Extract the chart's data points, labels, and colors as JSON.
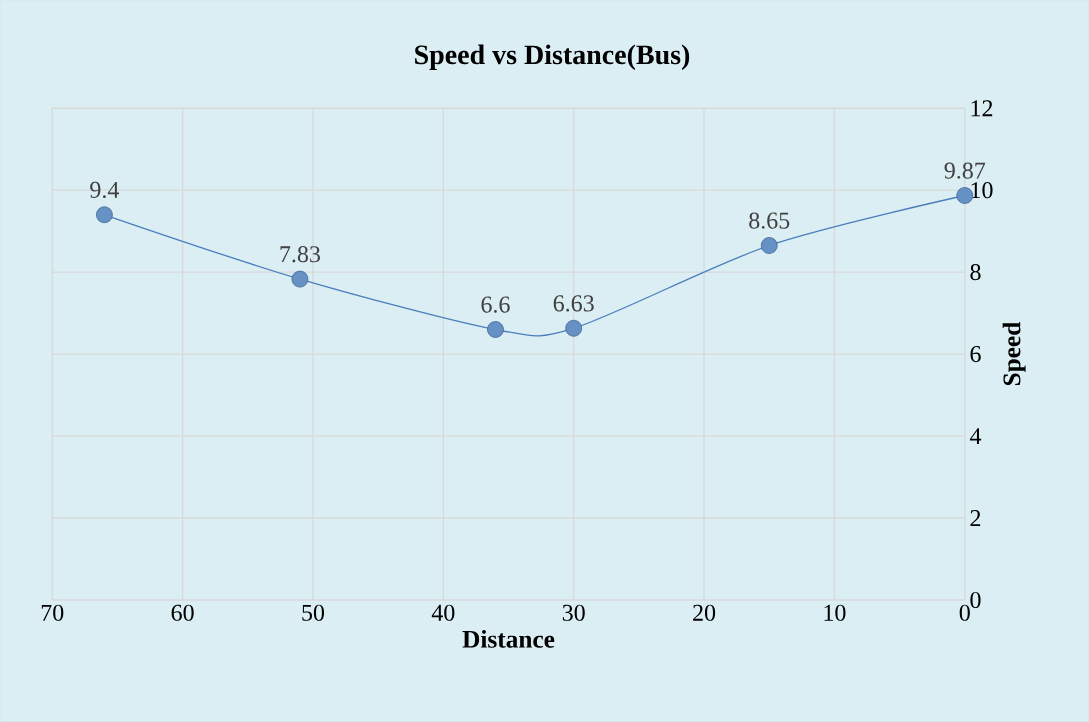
{
  "chart_data": {
    "type": "line",
    "title": "Speed vs Distance(Bus)",
    "xlabel": "Distance",
    "ylabel": "Speed",
    "x": [
      66,
      51,
      36,
      30,
      15,
      0
    ],
    "series": [
      {
        "color": "#4a7ebb",
        "values": [
          9.4,
          7.83,
          6.6,
          6.63,
          8.65,
          9.87
        ]
      }
    ],
    "xlim": [
      70,
      0
    ],
    "xticks": [
      70,
      60,
      50,
      40,
      30,
      20,
      10,
      0
    ],
    "ylim": [
      0,
      12
    ],
    "yticks": [
      0,
      2,
      4,
      6,
      8,
      10,
      12
    ],
    "grid": true,
    "marker": "circle",
    "line_style": "solid",
    "data_labels": true
  }
}
